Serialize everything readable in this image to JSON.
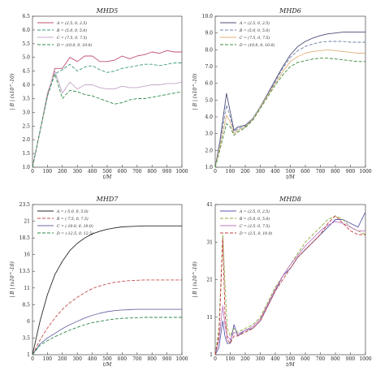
{
  "chart_data": [
    {
      "id": "mhd5",
      "type": "line",
      "title": "MHD5",
      "xlabel": "t/M",
      "ylabel": "| B | (x10^-10)",
      "xlim": [
        0,
        1000
      ],
      "ylim": [
        1.0,
        6.5
      ],
      "xticks": [
        0,
        100,
        200,
        300,
        400,
        500,
        600,
        700,
        800,
        900,
        1000
      ],
      "yticks": [
        1.0,
        1.5,
        2.0,
        2.5,
        3.0,
        3.5,
        4.0,
        4.5,
        5.0,
        5.5,
        6.0,
        6.5
      ],
      "ytick_labels": [
        "1.0",
        "1.5",
        "2.0",
        "2.5",
        "3.0",
        "3.5",
        "4.0",
        "4.5",
        "5.0",
        "5.5",
        "6.0",
        "6.5"
      ],
      "legend_position": "top-left",
      "series": [
        {
          "name": "A = (2.5, 0, 2.5)",
          "color": "#c0506e",
          "dash": "solid",
          "x": [
            0,
            50,
            100,
            150,
            200,
            250,
            300,
            350,
            400,
            450,
            500,
            550,
            600,
            650,
            700,
            750,
            800,
            850,
            900,
            950,
            1000
          ],
          "y": [
            1.0,
            2.3,
            3.6,
            4.6,
            4.6,
            5.0,
            4.85,
            5.05,
            5.05,
            4.85,
            4.85,
            4.9,
            5.05,
            4.95,
            5.05,
            5.1,
            5.2,
            5.15,
            5.25,
            5.2,
            5.2
          ]
        },
        {
          "name": "B = (5.0, 0, 5.0)",
          "color": "#3a9a7a",
          "dash": "4,2",
          "x": [
            0,
            50,
            100,
            150,
            200,
            250,
            300,
            350,
            400,
            450,
            500,
            550,
            600,
            650,
            700,
            750,
            800,
            850,
            900,
            950,
            1000
          ],
          "y": [
            1.0,
            2.3,
            3.6,
            4.4,
            4.55,
            4.75,
            4.5,
            4.65,
            4.7,
            4.55,
            4.45,
            4.5,
            4.6,
            4.65,
            4.7,
            4.75,
            4.75,
            4.7,
            4.75,
            4.8,
            4.8
          ]
        },
        {
          "name": "C = (7.5, 0, 7.5)",
          "color": "#c4a4c8",
          "dash": "solid",
          "x": [
            0,
            50,
            100,
            150,
            200,
            250,
            300,
            350,
            400,
            450,
            500,
            550,
            600,
            650,
            700,
            750,
            800,
            850,
            900,
            950,
            1000
          ],
          "y": [
            1.0,
            2.3,
            3.7,
            4.5,
            3.7,
            4.1,
            3.85,
            4.0,
            4.0,
            3.9,
            3.85,
            3.85,
            3.95,
            3.9,
            3.9,
            3.95,
            4.0,
            4.0,
            4.05,
            4.05,
            4.1
          ]
        },
        {
          "name": "D = (10.0, 0, 10.0)",
          "color": "#2e8a4a",
          "dash": "4,2",
          "x": [
            0,
            50,
            100,
            150,
            200,
            250,
            300,
            350,
            400,
            450,
            500,
            550,
            600,
            650,
            700,
            750,
            800,
            850,
            900,
            950,
            1000
          ],
          "y": [
            1.0,
            2.3,
            3.6,
            4.4,
            3.5,
            3.8,
            3.75,
            3.65,
            3.6,
            3.5,
            3.4,
            3.3,
            3.35,
            3.45,
            3.5,
            3.5,
            3.55,
            3.6,
            3.65,
            3.7,
            3.75
          ]
        }
      ]
    },
    {
      "id": "mhd6",
      "type": "line",
      "title": "MHD6",
      "xlabel": "t/M",
      "ylabel": "| B | (x10^-10)",
      "xlim": [
        0,
        1000
      ],
      "ylim": [
        1.0,
        10.0
      ],
      "xticks": [
        0,
        100,
        200,
        300,
        400,
        500,
        600,
        700,
        800,
        900,
        1000
      ],
      "yticks": [
        1.0,
        2.0,
        3.0,
        4.0,
        5.0,
        6.0,
        7.0,
        8.0,
        9.0,
        10.0
      ],
      "ytick_labels": [
        "1.0",
        "2.0",
        "3.0",
        "4.0",
        "5.0",
        "6.0",
        "7.0",
        "8.0",
        "9.0",
        "10.0"
      ],
      "legend_position": "top-left",
      "series": [
        {
          "name": "A = (2.5, 0, 2.5)",
          "color": "#4c4c78",
          "dash": "solid",
          "x": [
            0,
            30,
            75,
            100,
            125,
            150,
            200,
            250,
            300,
            350,
            400,
            450,
            500,
            550,
            600,
            650,
            700,
            750,
            800,
            850,
            900,
            950,
            1000
          ],
          "y": [
            1.0,
            2.5,
            5.4,
            4.3,
            3.2,
            3.4,
            3.5,
            3.9,
            4.6,
            5.4,
            6.2,
            7.0,
            7.7,
            8.2,
            8.5,
            8.7,
            8.85,
            8.95,
            9.0,
            9.05,
            9.05,
            9.05,
            9.05
          ]
        },
        {
          "name": "B = (5.0, 0, 5.0)",
          "color": "#6a7fa8",
          "dash": "4,2",
          "x": [
            0,
            30,
            75,
            100,
            125,
            150,
            200,
            250,
            300,
            350,
            400,
            450,
            500,
            550,
            600,
            650,
            700,
            750,
            800,
            850,
            900,
            950,
            1000
          ],
          "y": [
            1.0,
            2.4,
            4.7,
            4.0,
            3.1,
            3.3,
            3.45,
            3.9,
            4.6,
            5.35,
            6.1,
            6.9,
            7.55,
            7.95,
            8.2,
            8.35,
            8.45,
            8.5,
            8.5,
            8.5,
            8.45,
            8.45,
            8.45
          ]
        },
        {
          "name": "C = (7.5, 0, 7.5)",
          "color": "#e0b27a",
          "dash": "solid",
          "x": [
            0,
            30,
            75,
            100,
            125,
            150,
            200,
            250,
            300,
            350,
            400,
            450,
            500,
            550,
            600,
            650,
            700,
            750,
            800,
            850,
            900,
            950,
            1000
          ],
          "y": [
            1.0,
            2.2,
            4.1,
            3.7,
            3.0,
            3.2,
            3.4,
            3.85,
            4.55,
            5.3,
            6.0,
            6.7,
            7.3,
            7.6,
            7.8,
            7.9,
            7.95,
            8.0,
            7.95,
            7.9,
            7.85,
            7.8,
            7.8
          ]
        },
        {
          "name": "D = (10.0, 0, 10.0)",
          "color": "#3c8a3c",
          "dash": "4,2",
          "x": [
            0,
            30,
            75,
            100,
            125,
            150,
            200,
            250,
            300,
            350,
            400,
            450,
            500,
            550,
            600,
            650,
            700,
            750,
            800,
            850,
            900,
            950,
            1000
          ],
          "y": [
            1.0,
            2.0,
            3.6,
            3.4,
            2.9,
            3.1,
            3.35,
            3.8,
            4.5,
            5.2,
            5.9,
            6.5,
            7.0,
            7.25,
            7.35,
            7.45,
            7.5,
            7.5,
            7.45,
            7.4,
            7.35,
            7.3,
            7.3
          ]
        }
      ]
    },
    {
      "id": "mhd7",
      "type": "line",
      "title": "MHD7",
      "xlabel": "t/M",
      "ylabel": "| B | (x10^-10)",
      "xlim": [
        0,
        1000
      ],
      "ylim": [
        1,
        23.5
      ],
      "xticks": [
        0,
        100,
        200,
        300,
        400,
        500,
        600,
        700,
        800,
        900,
        1000
      ],
      "yticks": [
        1,
        3.5,
        6,
        8.5,
        11,
        13.5,
        16,
        18.5,
        21,
        23.5
      ],
      "ytick_labels": [
        "1",
        "3.5",
        "6",
        "8.5",
        "11",
        "13.5",
        "16",
        "18.5",
        "21",
        "23.5"
      ],
      "legend_position": "top-left",
      "series": [
        {
          "name": "A = (-5.0, 0, 5.0)",
          "color": "#2a2a2a",
          "dash": "solid",
          "x": [
            0,
            50,
            100,
            150,
            200,
            250,
            300,
            350,
            400,
            450,
            500,
            550,
            600,
            650,
            700,
            750,
            800,
            850,
            900,
            950,
            1000
          ],
          "y": [
            1,
            6.0,
            10.0,
            13.0,
            15.0,
            16.6,
            17.7,
            18.5,
            19.1,
            19.5,
            19.8,
            20.0,
            20.15,
            20.2,
            20.25,
            20.3,
            20.3,
            20.3,
            20.3,
            20.3,
            20.3
          ]
        },
        {
          "name": "B = (-7.5, 0, 7.5)",
          "color": "#c0504d",
          "dash": "4,2",
          "x": [
            0,
            50,
            100,
            150,
            200,
            250,
            300,
            350,
            400,
            450,
            500,
            550,
            600,
            650,
            700,
            750,
            800,
            850,
            900,
            950,
            1000
          ],
          "y": [
            1,
            3.2,
            5.0,
            6.5,
            7.8,
            8.8,
            9.6,
            10.3,
            10.9,
            11.3,
            11.6,
            11.85,
            12.0,
            12.1,
            12.15,
            12.2,
            12.2,
            12.2,
            12.2,
            12.2,
            12.2
          ]
        },
        {
          "name": "C = (-10.0, 0, 10.0)",
          "color": "#6a6aa8",
          "dash": "solid",
          "x": [
            0,
            50,
            100,
            150,
            200,
            250,
            300,
            350,
            400,
            450,
            500,
            550,
            600,
            650,
            700,
            750,
            800,
            850,
            900,
            950,
            1000
          ],
          "y": [
            1,
            2.6,
            3.5,
            4.2,
            4.9,
            5.5,
            6.0,
            6.5,
            6.9,
            7.2,
            7.45,
            7.6,
            7.7,
            7.75,
            7.8,
            7.8,
            7.8,
            7.8,
            7.8,
            7.8,
            7.8
          ]
        },
        {
          "name": "D = (-12.5, 0, 12.5)",
          "color": "#2e8a4a",
          "dash": "4,2",
          "x": [
            0,
            50,
            100,
            150,
            200,
            250,
            300,
            350,
            400,
            450,
            500,
            550,
            600,
            650,
            700,
            750,
            800,
            850,
            900,
            950,
            1000
          ],
          "y": [
            1,
            2.4,
            3.1,
            3.7,
            4.2,
            4.7,
            5.1,
            5.5,
            5.8,
            6.0,
            6.2,
            6.35,
            6.45,
            6.5,
            6.55,
            6.6,
            6.6,
            6.6,
            6.6,
            6.6,
            6.6
          ]
        }
      ]
    },
    {
      "id": "mhd8",
      "type": "line",
      "title": "MHD8",
      "xlabel": "t/M",
      "ylabel": "| B | (x10^-10)",
      "xlim": [
        0,
        1000
      ],
      "ylim": [
        1,
        41
      ],
      "xticks": [
        0,
        100,
        200,
        300,
        400,
        500,
        600,
        700,
        800,
        900,
        1000
      ],
      "yticks": [
        1,
        11,
        21,
        31,
        41
      ],
      "ytick_labels": [
        "1",
        "11",
        "21",
        "31",
        "41"
      ],
      "legend_position": "top-left",
      "series": [
        {
          "name": "A = (2.5, 0, 2.5)",
          "color": "#5a5aa8",
          "dash": "solid",
          "x": [
            0,
            25,
            50,
            65,
            80,
            100,
            125,
            150,
            200,
            250,
            300,
            350,
            400,
            450,
            500,
            550,
            600,
            650,
            700,
            750,
            800,
            850,
            900,
            950,
            1000
          ],
          "y": [
            1,
            3,
            10,
            6,
            4,
            4,
            9,
            6,
            7.5,
            8,
            10,
            14,
            18,
            22,
            24,
            27,
            29,
            31,
            33,
            35,
            37,
            37,
            36,
            35,
            39
          ]
        },
        {
          "name": "B = (5.0, 0, 5.0)",
          "color": "#8aaa3a",
          "dash": "4,2",
          "x": [
            0,
            25,
            50,
            65,
            80,
            100,
            125,
            150,
            200,
            250,
            300,
            350,
            400,
            450,
            500,
            550,
            600,
            650,
            700,
            750,
            800,
            850,
            900,
            950,
            1000
          ],
          "y": [
            1,
            8,
            33,
            20,
            8,
            6,
            8,
            7,
            8,
            9,
            11,
            15,
            19,
            22,
            25,
            28,
            31,
            33,
            35,
            37,
            38,
            37,
            35,
            34,
            33
          ]
        },
        {
          "name": "C = (2.5, 0, 7.5)",
          "color": "#c07ac0",
          "dash": "solid",
          "x": [
            0,
            25,
            50,
            65,
            80,
            100,
            125,
            150,
            200,
            250,
            300,
            350,
            400,
            450,
            500,
            550,
            600,
            650,
            700,
            750,
            800,
            850,
            900,
            950,
            1000
          ],
          "y": [
            1,
            5,
            14,
            9,
            6,
            5,
            7,
            6.5,
            7.5,
            8.5,
            10.5,
            14.5,
            18.5,
            22,
            25,
            27.5,
            30,
            32,
            34,
            35.5,
            36.5,
            36,
            35,
            34,
            34
          ]
        },
        {
          "name": "D = (2.5, 0, 10.0)",
          "color": "#c03a3a",
          "dash": "4,2",
          "x": [
            0,
            25,
            50,
            65,
            80,
            100,
            125,
            150,
            200,
            250,
            300,
            350,
            400,
            450,
            500,
            550,
            600,
            650,
            700,
            750,
            800,
            850,
            900,
            950,
            1000
          ],
          "y": [
            1,
            6,
            32,
            12,
            5,
            4,
            6,
            6,
            7,
            8,
            10,
            14,
            18,
            21,
            24,
            27,
            29,
            31,
            33,
            36,
            38,
            36,
            34,
            33,
            33
          ]
        }
      ]
    }
  ]
}
